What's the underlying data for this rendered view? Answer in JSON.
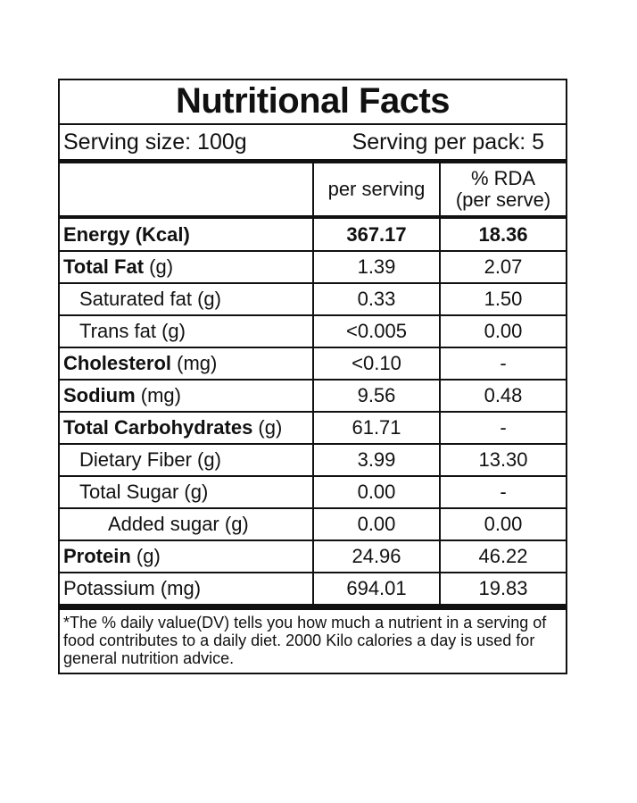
{
  "title": "Nutritional Facts",
  "serving_size": "Serving size: 100g",
  "serving_per_pack": "Serving per pack: 5",
  "headers": {
    "per_serving": "per serving",
    "rda_line1": "% RDA",
    "rda_line2": "(per serve)"
  },
  "rows": [
    {
      "bold": "Energy (Kcal)",
      "rest": "",
      "per_serving": "367.17",
      "rda": "18.36"
    },
    {
      "bold": "Total Fat",
      "rest": " (g)",
      "per_serving": "1.39",
      "rda": "2.07"
    },
    {
      "bold": "",
      "rest": "Saturated fat (g)",
      "per_serving": "0.33",
      "rda": "1.50"
    },
    {
      "bold": "",
      "rest": "Trans fat (g)",
      "per_serving": "<0.005",
      "rda": "0.00"
    },
    {
      "bold": "Cholesterol",
      "rest": " (mg)",
      "per_serving": "<0.10",
      "rda": "-"
    },
    {
      "bold": "Sodium",
      "rest": " (mg)",
      "per_serving": "9.56",
      "rda": "0.48"
    },
    {
      "bold": "Total Carbohydrates",
      "rest": " (g)",
      "per_serving": "61.71",
      "rda": "-"
    },
    {
      "bold": "",
      "rest": "Dietary Fiber (g)",
      "per_serving": "3.99",
      "rda": "13.30"
    },
    {
      "bold": "",
      "rest": "Total Sugar (g)",
      "per_serving": "0.00",
      "rda": "-"
    },
    {
      "bold": "",
      "rest": "Added sugar (g)",
      "per_serving": "0.00",
      "rda": "0.00"
    },
    {
      "bold": "Protein",
      "rest": " (g)",
      "per_serving": "24.96",
      "rda": "46.22"
    },
    {
      "bold": "",
      "rest": "Potassium (mg)",
      "per_serving": "694.01",
      "rda": "19.83"
    }
  ],
  "footnote": "*The % daily value(DV) tells you how much a nutrient in a serving of food contributes to a daily diet. 2000 Kilo calories a day is used for general nutrition advice."
}
